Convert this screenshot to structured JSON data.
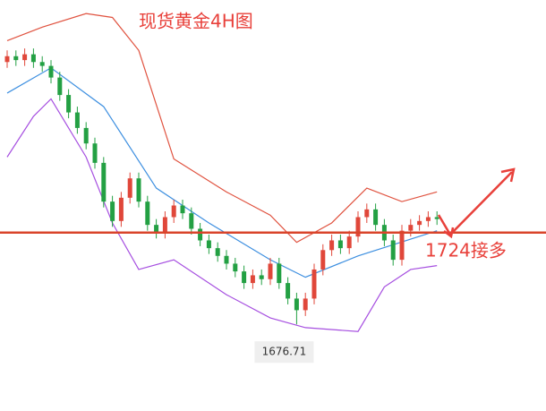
{
  "chart_data": {
    "type": "candlestick",
    "title": "现货黄金4H图",
    "open": [
      1812,
      1815,
      1813,
      1816,
      1812,
      1810,
      1804,
      1795,
      1786,
      1778,
      1770,
      1760,
      1740,
      1730,
      1742,
      1752,
      1740,
      1728,
      1724,
      1732,
      1738,
      1734,
      1726,
      1720,
      1716,
      1712,
      1708,
      1704,
      1698,
      1702,
      1700,
      1708,
      1698,
      1690,
      1684,
      1690,
      1705,
      1715,
      1720,
      1716,
      1722,
      1732,
      1736,
      1728,
      1720,
      1710,
      1725,
      1728,
      1730,
      1732
    ],
    "close": [
      1815,
      1813,
      1816,
      1812,
      1810,
      1804,
      1795,
      1786,
      1778,
      1770,
      1760,
      1740,
      1730,
      1742,
      1752,
      1740,
      1728,
      1724,
      1732,
      1738,
      1734,
      1726,
      1720,
      1716,
      1712,
      1708,
      1704,
      1698,
      1702,
      1700,
      1708,
      1698,
      1690,
      1684,
      1690,
      1705,
      1715,
      1720,
      1716,
      1722,
      1732,
      1736,
      1728,
      1720,
      1710,
      1725,
      1728,
      1730,
      1732,
      1731
    ],
    "high": [
      1818,
      1818,
      1819,
      1819,
      1815,
      1813,
      1807,
      1798,
      1789,
      1781,
      1773,
      1763,
      1743,
      1745,
      1755,
      1755,
      1743,
      1731,
      1735,
      1741,
      1741,
      1737,
      1729,
      1723,
      1719,
      1715,
      1711,
      1707,
      1705,
      1705,
      1711,
      1711,
      1701,
      1693,
      1693,
      1708,
      1718,
      1723,
      1723,
      1725,
      1735,
      1739,
      1739,
      1731,
      1723,
      1728,
      1731,
      1733,
      1735,
      1735
    ],
    "low": [
      1809,
      1810,
      1810,
      1809,
      1807,
      1801,
      1792,
      1783,
      1775,
      1767,
      1757,
      1737,
      1727,
      1727,
      1739,
      1737,
      1725,
      1721,
      1721,
      1729,
      1731,
      1723,
      1717,
      1713,
      1709,
      1705,
      1701,
      1695,
      1695,
      1697,
      1697,
      1695,
      1687,
      1676.71,
      1681,
      1687,
      1702,
      1712,
      1713,
      1713,
      1719,
      1729,
      1725,
      1717,
      1707,
      1707,
      1722,
      1725,
      1727,
      1728
    ],
    "up_color": "#e0473a",
    "down_color": "#23a043",
    "bands": [
      {
        "color": "#e0523f",
        "x": [
          0,
          4,
          9,
          12,
          15,
          19,
          25,
          30,
          33,
          37,
          41,
          45,
          49
        ],
        "values": [
          1823,
          1830,
          1837,
          1835,
          1818,
          1762,
          1745,
          1733,
          1719,
          1729,
          1747,
          1740,
          1745
        ]
      },
      {
        "color": "#3d8fe0",
        "x": [
          0,
          5,
          11,
          17,
          23,
          30,
          34,
          40,
          49
        ],
        "values": [
          1796,
          1809,
          1789,
          1747,
          1729,
          1710,
          1701,
          1712,
          1725
        ]
      },
      {
        "color": "#a64fe0",
        "x": [
          0,
          3,
          5,
          9,
          12,
          15,
          19,
          25,
          30,
          34,
          40,
          43,
          46,
          49
        ],
        "values": [
          1763,
          1784,
          1793,
          1763,
          1729,
          1705,
          1710,
          1692,
          1680,
          1675,
          1673,
          1696,
          1705,
          1707
        ]
      }
    ],
    "hline": 1724,
    "hline_color": "#d9442b",
    "annotation": "1724接多",
    "low_label": 1676.71,
    "ylim": [
      1632,
      1844
    ]
  }
}
